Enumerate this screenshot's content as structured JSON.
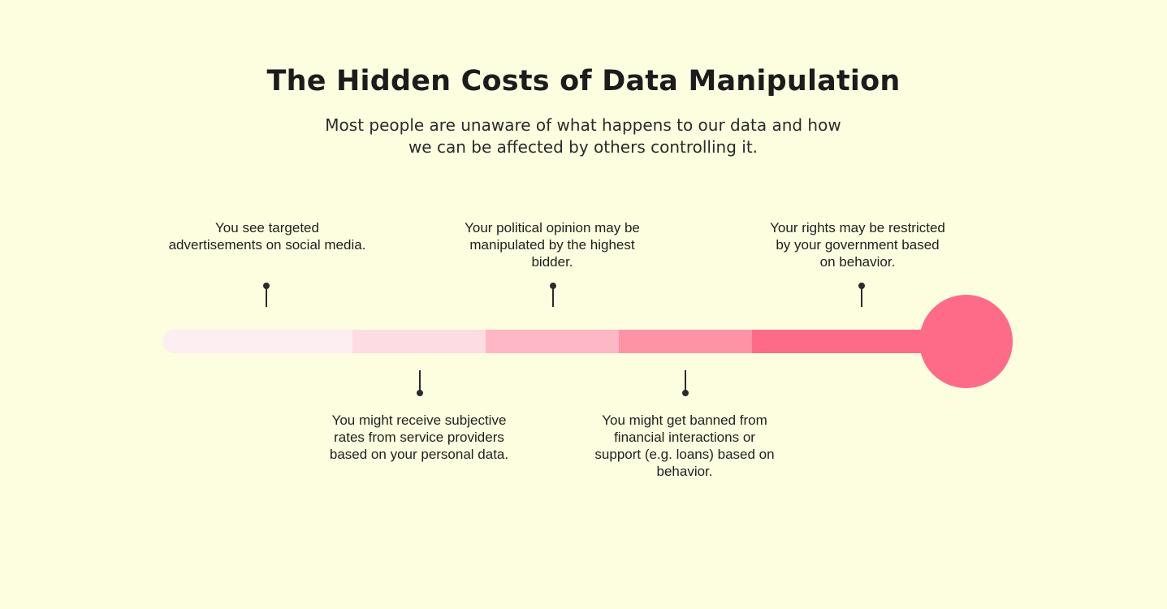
{
  "header": {
    "title": "The Hidden Costs of Data Manipulation",
    "subtitle_line1": "Most people are unaware of what happens to our data and how",
    "subtitle_line2": "we can be affected by others controlling it."
  },
  "timeline": {
    "events": [
      {
        "position": "above",
        "lines": [
          "You see targeted",
          "advertisements on social media."
        ]
      },
      {
        "position": "below",
        "lines": [
          "You might receive subjective",
          "rates from service providers",
          "based on your personal data."
        ]
      },
      {
        "position": "above",
        "lines": [
          "Your political opinion may be",
          "manipulated by the highest",
          "bidder."
        ]
      },
      {
        "position": "below",
        "lines": [
          "You might get banned from",
          "financial interactions or",
          "support (e.g. loans) based on",
          "behavior."
        ]
      },
      {
        "position": "above",
        "lines": [
          "Your rights may be restricted",
          "by your government based",
          "on behavior."
        ]
      }
    ],
    "colors": {
      "background": "#fdfee0",
      "segment_1": "#fdeef2",
      "segment_2": "#fddde3",
      "segment_3": "#feb7c4",
      "segment_4": "#fe93a6",
      "segment_5": "#fe6b89",
      "marker": "#2b2b2b"
    }
  }
}
